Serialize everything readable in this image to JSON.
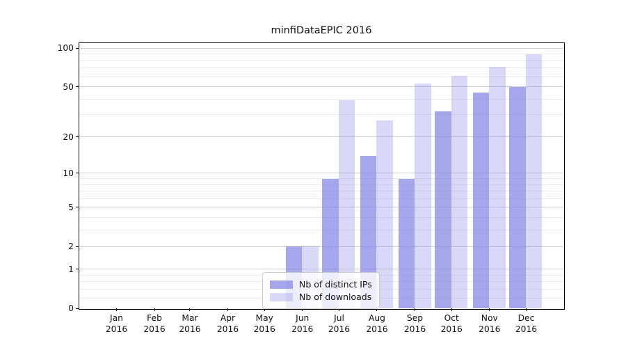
{
  "title": "minfiDataEPIC 2016",
  "chart_data": {
    "type": "bar",
    "title": "minfiDataEPIC 2016",
    "categories": [
      "Jan 2016",
      "Feb 2016",
      "Mar 2016",
      "Apr 2016",
      "May 2016",
      "Jun 2016",
      "Jul 2016",
      "Aug 2016",
      "Sep 2016",
      "Oct 2016",
      "Nov 2016",
      "Dec 2016"
    ],
    "series": [
      {
        "name": "Nb of distinct IPs",
        "color": "rgba(128,128,230,0.7)",
        "values": [
          0,
          0,
          0,
          0,
          0,
          2,
          9,
          14,
          9,
          32,
          45,
          50
        ]
      },
      {
        "name": "Nb of downloads",
        "color": "rgba(128,128,230,0.3)",
        "values": [
          0,
          0,
          0,
          0,
          0,
          2,
          39,
          27,
          53,
          61,
          72,
          90
        ]
      }
    ],
    "xlabel": "",
    "ylabel": "",
    "yscale": "log1p",
    "ylim": [
      0,
      111
    ],
    "yticks": [
      0,
      1,
      2,
      5,
      10,
      20,
      50,
      100
    ],
    "minor_yticks": [
      0.2,
      0.4,
      0.6,
      0.8,
      3,
      4,
      6,
      7,
      8,
      9,
      30,
      40,
      60,
      70,
      80,
      90
    ],
    "grid": true,
    "legend_position": "lower center"
  },
  "colors": {
    "ip_bar": "#a6a6ed",
    "download_bar": "#d9d9f7",
    "grid_major": "#cfcfcf",
    "grid_minor": "#ececec",
    "axis": "#000000",
    "legend_border": "#cccccc",
    "background": "#ffffff"
  }
}
